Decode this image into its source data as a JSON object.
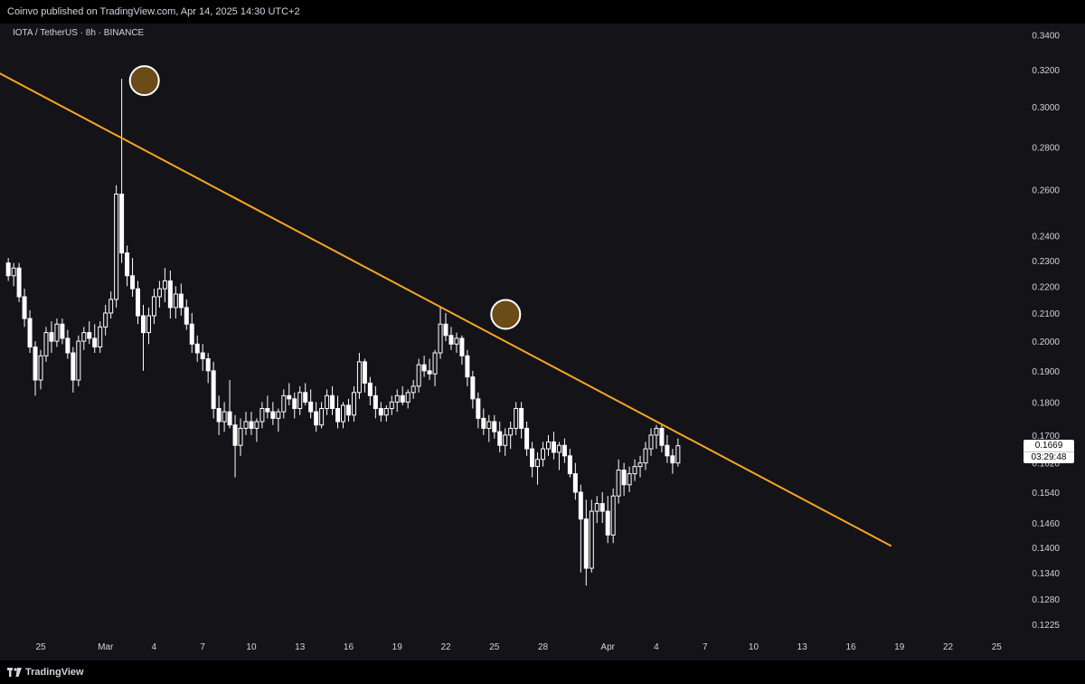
{
  "header": {
    "published_text": "Coinvo published on TradingView.com, Apr 14, 2025 14:30 UTC+2"
  },
  "symbol_line": "IOTA / TetherUS · 8h · BINANCE",
  "footer": {
    "brand": "TradingView"
  },
  "last_price": {
    "price": "0.1669",
    "countdown": "03:29:48"
  },
  "colors": {
    "background": "#141318",
    "candle": "#ffffff",
    "trendline": "#f5a623",
    "circle_fill": "#7a5616"
  },
  "icons": {
    "footer_logo": "tradingview-logo-icon"
  },
  "chart_data": {
    "type": "candlestick",
    "y_scale": "log",
    "ylim": [
      0.118,
      0.345
    ],
    "y_ticks": [
      "0.3400",
      "0.3200",
      "0.3000",
      "0.2800",
      "0.2600",
      "0.2400",
      "0.2300",
      "0.2200",
      "0.2100",
      "0.2000",
      "0.1900",
      "0.1800",
      "0.1700",
      "0.1620",
      "0.1540",
      "0.1460",
      "0.1400",
      "0.1340",
      "0.1280",
      "0.1225"
    ],
    "x_ticks": [
      {
        "label": "25",
        "x": 0
      },
      {
        "label": "Mar",
        "x": 4
      },
      {
        "label": "4",
        "x": 7
      },
      {
        "label": "7",
        "x": 10
      },
      {
        "label": "10",
        "x": 13
      },
      {
        "label": "13",
        "x": 16
      },
      {
        "label": "16",
        "x": 19
      },
      {
        "label": "19",
        "x": 22
      },
      {
        "label": "22",
        "x": 25
      },
      {
        "label": "25",
        "x": 28
      },
      {
        "label": "28",
        "x": 31
      },
      {
        "label": "Apr",
        "x": 35
      },
      {
        "label": "4",
        "x": 38
      },
      {
        "label": "7",
        "x": 41
      },
      {
        "label": "10",
        "x": 44
      },
      {
        "label": "13",
        "x": 47
      },
      {
        "label": "16",
        "x": 50
      },
      {
        "label": "19",
        "x": 53
      },
      {
        "label": "22",
        "x": 56
      },
      {
        "label": "25",
        "x": 59
      }
    ],
    "candles_unit": "8h candles, [open, high, low, close]",
    "candles": [
      [
        0.229,
        0.231,
        0.222,
        0.224
      ],
      [
        0.224,
        0.229,
        0.22,
        0.227
      ],
      [
        0.227,
        0.229,
        0.214,
        0.216
      ],
      [
        0.216,
        0.219,
        0.205,
        0.208
      ],
      [
        0.208,
        0.211,
        0.196,
        0.198
      ],
      [
        0.198,
        0.2,
        0.182,
        0.187
      ],
      [
        0.187,
        0.197,
        0.184,
        0.195
      ],
      [
        0.195,
        0.205,
        0.193,
        0.203
      ],
      [
        0.203,
        0.207,
        0.196,
        0.2
      ],
      [
        0.2,
        0.208,
        0.198,
        0.206
      ],
      [
        0.206,
        0.208,
        0.199,
        0.201
      ],
      [
        0.201,
        0.204,
        0.194,
        0.196
      ],
      [
        0.196,
        0.198,
        0.183,
        0.187
      ],
      [
        0.187,
        0.202,
        0.185,
        0.2
      ],
      [
        0.2,
        0.205,
        0.197,
        0.203
      ],
      [
        0.203,
        0.207,
        0.199,
        0.201
      ],
      [
        0.201,
        0.206,
        0.196,
        0.198
      ],
      [
        0.198,
        0.207,
        0.196,
        0.205
      ],
      [
        0.205,
        0.213,
        0.202,
        0.21
      ],
      [
        0.21,
        0.218,
        0.208,
        0.215
      ],
      [
        0.215,
        0.262,
        0.212,
        0.258
      ],
      [
        0.258,
        0.315,
        0.229,
        0.233
      ],
      [
        0.233,
        0.236,
        0.22,
        0.224
      ],
      [
        0.224,
        0.231,
        0.216,
        0.219
      ],
      [
        0.219,
        0.222,
        0.206,
        0.209
      ],
      [
        0.209,
        0.213,
        0.19,
        0.203
      ],
      [
        0.203,
        0.212,
        0.199,
        0.209
      ],
      [
        0.209,
        0.219,
        0.206,
        0.216
      ],
      [
        0.216,
        0.222,
        0.212,
        0.219
      ],
      [
        0.219,
        0.227,
        0.214,
        0.222
      ],
      [
        0.222,
        0.226,
        0.208,
        0.212
      ],
      [
        0.212,
        0.22,
        0.208,
        0.217
      ],
      [
        0.217,
        0.221,
        0.209,
        0.212
      ],
      [
        0.212,
        0.215,
        0.204,
        0.206
      ],
      [
        0.206,
        0.21,
        0.196,
        0.199
      ],
      [
        0.199,
        0.202,
        0.193,
        0.196
      ],
      [
        0.196,
        0.199,
        0.19,
        0.194
      ],
      [
        0.194,
        0.196,
        0.186,
        0.19
      ],
      [
        0.19,
        0.193,
        0.175,
        0.178
      ],
      [
        0.178,
        0.182,
        0.17,
        0.174
      ],
      [
        0.174,
        0.18,
        0.171,
        0.177
      ],
      [
        0.177,
        0.187,
        0.172,
        0.173
      ],
      [
        0.173,
        0.176,
        0.158,
        0.167
      ],
      [
        0.167,
        0.175,
        0.164,
        0.172
      ],
      [
        0.172,
        0.177,
        0.17,
        0.174
      ],
      [
        0.174,
        0.177,
        0.17,
        0.172
      ],
      [
        0.172,
        0.175,
        0.168,
        0.174
      ],
      [
        0.174,
        0.18,
        0.172,
        0.178
      ],
      [
        0.178,
        0.182,
        0.175,
        0.177
      ],
      [
        0.177,
        0.18,
        0.173,
        0.175
      ],
      [
        0.175,
        0.178,
        0.171,
        0.177
      ],
      [
        0.177,
        0.184,
        0.175,
        0.182
      ],
      [
        0.182,
        0.186,
        0.179,
        0.181
      ],
      [
        0.181,
        0.183,
        0.175,
        0.178
      ],
      [
        0.178,
        0.185,
        0.176,
        0.183
      ],
      [
        0.183,
        0.186,
        0.179,
        0.18
      ],
      [
        0.18,
        0.184,
        0.175,
        0.177
      ],
      [
        0.177,
        0.18,
        0.171,
        0.173
      ],
      [
        0.173,
        0.18,
        0.172,
        0.178
      ],
      [
        0.178,
        0.184,
        0.176,
        0.182
      ],
      [
        0.182,
        0.185,
        0.176,
        0.178
      ],
      [
        0.178,
        0.182,
        0.172,
        0.174
      ],
      [
        0.174,
        0.18,
        0.172,
        0.179
      ],
      [
        0.179,
        0.181,
        0.174,
        0.176
      ],
      [
        0.176,
        0.185,
        0.174,
        0.183
      ],
      [
        0.183,
        0.196,
        0.181,
        0.193
      ],
      [
        0.193,
        0.194,
        0.183,
        0.186
      ],
      [
        0.186,
        0.188,
        0.179,
        0.182
      ],
      [
        0.182,
        0.185,
        0.175,
        0.178
      ],
      [
        0.178,
        0.18,
        0.174,
        0.176
      ],
      [
        0.176,
        0.179,
        0.174,
        0.178
      ],
      [
        0.178,
        0.182,
        0.176,
        0.18
      ],
      [
        0.18,
        0.184,
        0.177,
        0.182
      ],
      [
        0.182,
        0.185,
        0.179,
        0.18
      ],
      [
        0.18,
        0.184,
        0.178,
        0.183
      ],
      [
        0.183,
        0.187,
        0.181,
        0.185
      ],
      [
        0.185,
        0.194,
        0.183,
        0.192
      ],
      [
        0.192,
        0.195,
        0.188,
        0.19
      ],
      [
        0.19,
        0.194,
        0.187,
        0.189
      ],
      [
        0.189,
        0.197,
        0.185,
        0.196
      ],
      [
        0.196,
        0.212,
        0.194,
        0.206
      ],
      [
        0.206,
        0.21,
        0.2,
        0.202
      ],
      [
        0.202,
        0.205,
        0.197,
        0.199
      ],
      [
        0.199,
        0.203,
        0.196,
        0.201
      ],
      [
        0.201,
        0.202,
        0.192,
        0.195
      ],
      [
        0.195,
        0.197,
        0.185,
        0.188
      ],
      [
        0.188,
        0.19,
        0.178,
        0.181
      ],
      [
        0.181,
        0.183,
        0.172,
        0.175
      ],
      [
        0.175,
        0.178,
        0.17,
        0.172
      ],
      [
        0.172,
        0.176,
        0.168,
        0.174
      ],
      [
        0.174,
        0.176,
        0.169,
        0.171
      ],
      [
        0.171,
        0.174,
        0.165,
        0.167
      ],
      [
        0.167,
        0.172,
        0.164,
        0.17
      ],
      [
        0.17,
        0.174,
        0.166,
        0.172
      ],
      [
        0.172,
        0.18,
        0.17,
        0.178
      ],
      [
        0.178,
        0.18,
        0.169,
        0.172
      ],
      [
        0.172,
        0.174,
        0.164,
        0.166
      ],
      [
        0.166,
        0.168,
        0.158,
        0.161
      ],
      [
        0.161,
        0.165,
        0.156,
        0.163
      ],
      [
        0.163,
        0.168,
        0.161,
        0.166
      ],
      [
        0.166,
        0.17,
        0.164,
        0.168
      ],
      [
        0.168,
        0.171,
        0.163,
        0.165
      ],
      [
        0.165,
        0.168,
        0.16,
        0.167
      ],
      [
        0.167,
        0.169,
        0.162,
        0.164
      ],
      [
        0.164,
        0.166,
        0.158,
        0.159
      ],
      [
        0.159,
        0.162,
        0.152,
        0.154
      ],
      [
        0.154,
        0.156,
        0.134,
        0.147
      ],
      [
        0.147,
        0.152,
        0.131,
        0.135
      ],
      [
        0.135,
        0.152,
        0.134,
        0.149
      ],
      [
        0.149,
        0.153,
        0.146,
        0.151
      ],
      [
        0.151,
        0.154,
        0.146,
        0.149
      ],
      [
        0.149,
        0.153,
        0.141,
        0.143
      ],
      [
        0.143,
        0.155,
        0.141,
        0.153
      ],
      [
        0.153,
        0.163,
        0.151,
        0.16
      ],
      [
        0.16,
        0.162,
        0.153,
        0.156
      ],
      [
        0.156,
        0.161,
        0.154,
        0.159
      ],
      [
        0.159,
        0.163,
        0.157,
        0.161
      ],
      [
        0.161,
        0.164,
        0.158,
        0.162
      ],
      [
        0.162,
        0.168,
        0.16,
        0.166
      ],
      [
        0.166,
        0.172,
        0.164,
        0.17
      ],
      [
        0.17,
        0.173,
        0.166,
        0.172
      ],
      [
        0.172,
        0.173,
        0.165,
        0.167
      ],
      [
        0.167,
        0.17,
        0.162,
        0.164
      ],
      [
        0.164,
        0.166,
        0.159,
        0.162
      ],
      [
        0.162,
        0.169,
        0.161,
        0.1669
      ]
    ],
    "trendline": {
      "x1": -4,
      "y1": 0.325,
      "x2": 52.5,
      "y2": 0.1403
    },
    "highlight_circles": [
      {
        "x": 6.4,
        "y": 0.314
      },
      {
        "x": 28.7,
        "y": 0.2095
      }
    ]
  }
}
